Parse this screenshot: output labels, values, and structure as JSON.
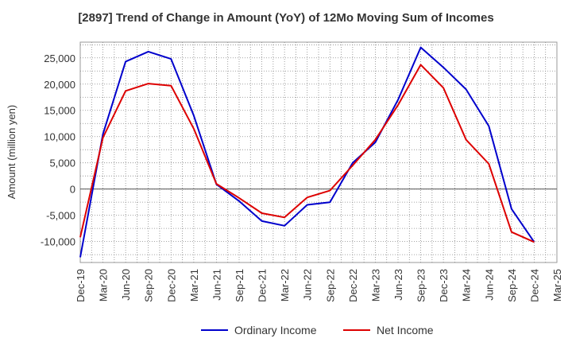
{
  "chart_data": {
    "type": "line",
    "title": "[2897]  Trend of Change in Amount (YoY) of 12Mo Moving Sum of Incomes",
    "xlabel": "",
    "ylabel": "Amount (million yen)",
    "categories": [
      "Dec-19",
      "Mar-20",
      "Jun-20",
      "Sep-20",
      "Dec-20",
      "Mar-21",
      "Jun-21",
      "Sep-21",
      "Dec-21",
      "Mar-22",
      "Jun-22",
      "Sep-22",
      "Dec-22",
      "Mar-23",
      "Jun-23",
      "Sep-23",
      "Dec-23",
      "Mar-24",
      "Jun-24",
      "Sep-24",
      "Dec-24",
      "Mar-25"
    ],
    "ylim": [
      -14000,
      28000
    ],
    "yticks": [
      -10000,
      -5000,
      0,
      5000,
      10000,
      15000,
      20000,
      25000
    ],
    "ytick_labels": [
      "-10,000",
      "-5,000",
      "0",
      "5,000",
      "10,000",
      "15,000",
      "20,000",
      "25,000"
    ],
    "grid": true,
    "legend_position": "bottom",
    "series": [
      {
        "name": "Ordinary Income",
        "color": "#0000cc",
        "values": [
          -13000,
          10500,
          24300,
          26200,
          24800,
          14000,
          900,
          -2300,
          -6100,
          -7000,
          -3000,
          -2500,
          5000,
          8900,
          17000,
          27000,
          23200,
          19000,
          12000,
          -3800,
          -10100,
          null
        ]
      },
      {
        "name": "Net Income",
        "color": "#dd0000",
        "values": [
          -9200,
          9800,
          18700,
          20100,
          19700,
          11500,
          1000,
          -1700,
          -4600,
          -5400,
          -1600,
          -300,
          4500,
          9400,
          16000,
          23700,
          19300,
          9400,
          4800,
          -8200,
          -10100,
          null
        ]
      }
    ]
  }
}
